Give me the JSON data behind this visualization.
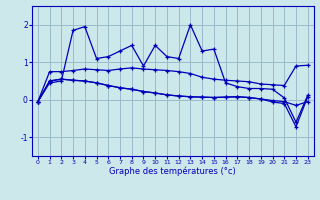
{
  "bg_color": "#cce8ea",
  "line_color": "#0000bb",
  "grid_color": "#99bbcc",
  "xlabel": "Graphe des températures (°c)",
  "ylim": [
    -1.5,
    2.5
  ],
  "xlim": [
    -0.5,
    23.5
  ],
  "yticks": [
    -1,
    0,
    1,
    2
  ],
  "xticks": [
    0,
    1,
    2,
    3,
    4,
    5,
    6,
    7,
    8,
    9,
    10,
    11,
    12,
    13,
    14,
    15,
    16,
    17,
    18,
    19,
    20,
    21,
    22,
    23
  ],
  "s0": [
    -0.05,
    0.45,
    0.5,
    1.85,
    1.95,
    1.1,
    1.15,
    1.3,
    1.45,
    0.9,
    1.45,
    1.15,
    1.1,
    2.0,
    1.3,
    1.35,
    0.45,
    0.35,
    0.3,
    0.3,
    0.28,
    0.05,
    -0.6,
    0.12
  ],
  "s1": [
    -0.05,
    0.75,
    0.75,
    0.78,
    0.82,
    0.8,
    0.78,
    0.82,
    0.85,
    0.82,
    0.8,
    0.78,
    0.75,
    0.7,
    0.6,
    0.55,
    0.52,
    0.5,
    0.48,
    0.42,
    0.4,
    0.38,
    0.9,
    0.92
  ],
  "s2": [
    -0.05,
    0.5,
    0.55,
    0.52,
    0.5,
    0.45,
    0.38,
    0.32,
    0.28,
    0.22,
    0.18,
    0.13,
    0.1,
    0.08,
    0.07,
    0.06,
    0.07,
    0.08,
    0.06,
    0.02,
    -0.02,
    -0.05,
    -0.15,
    -0.05
  ],
  "s3": [
    -0.05,
    0.5,
    0.55,
    0.52,
    0.5,
    0.45,
    0.38,
    0.32,
    0.28,
    0.22,
    0.18,
    0.13,
    0.1,
    0.08,
    0.07,
    0.06,
    0.07,
    0.08,
    0.06,
    0.02,
    -0.06,
    -0.1,
    -0.72,
    0.08
  ]
}
